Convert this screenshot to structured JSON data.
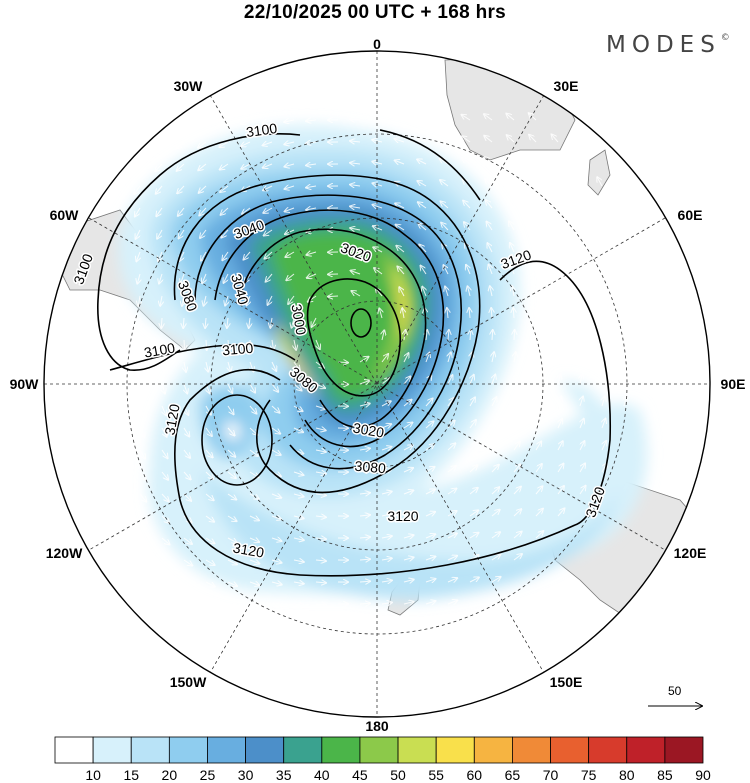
{
  "header": {
    "title": "22/10/2025  00 UTC  + 168 hrs",
    "brand": "MODES",
    "brand_mark": "©"
  },
  "map": {
    "projection": "south-polar-stereographic",
    "longitude_labels": [
      {
        "id": "lon-0",
        "text": "0"
      },
      {
        "id": "lon-30e",
        "text": "30E"
      },
      {
        "id": "lon-60e",
        "text": "60E"
      },
      {
        "id": "lon-90e",
        "text": "90E"
      },
      {
        "id": "lon-120e",
        "text": "120E"
      },
      {
        "id": "lon-150e",
        "text": "150E"
      },
      {
        "id": "lon-180",
        "text": "180"
      },
      {
        "id": "lon-150w",
        "text": "150W"
      },
      {
        "id": "lon-120w",
        "text": "120W"
      },
      {
        "id": "lon-90w",
        "text": "90W"
      },
      {
        "id": "lon-60w",
        "text": "60W"
      },
      {
        "id": "lon-30w",
        "text": "30W"
      }
    ],
    "contour_labels": [
      "3100",
      "3100",
      "3100",
      "3080",
      "3040",
      "3040",
      "3020",
      "3000",
      "3100",
      "3080",
      "3120",
      "3020",
      "3080",
      "3120",
      "3120",
      "3120",
      "3120"
    ],
    "reference_vector_label": "50"
  },
  "colors": {
    "land": "#e6e6e6",
    "coast": "#777777",
    "contour": "#000000",
    "arrows": "#ffffff"
  },
  "colorbar": {
    "ticks": [
      "10",
      "15",
      "20",
      "25",
      "30",
      "35",
      "40",
      "45",
      "50",
      "55",
      "60",
      "65",
      "70",
      "75",
      "80",
      "85",
      "90"
    ],
    "colors": [
      "#ffffff",
      "#d7f1fb",
      "#b9e3f7",
      "#8fcdef",
      "#68aee0",
      "#4c8fc9",
      "#3aa28f",
      "#4bb549",
      "#8cc94a",
      "#c9de52",
      "#f9e04b",
      "#f6b441",
      "#f08a37",
      "#e8602f",
      "#d73b2c",
      "#bf2129",
      "#9b1723"
    ]
  }
}
